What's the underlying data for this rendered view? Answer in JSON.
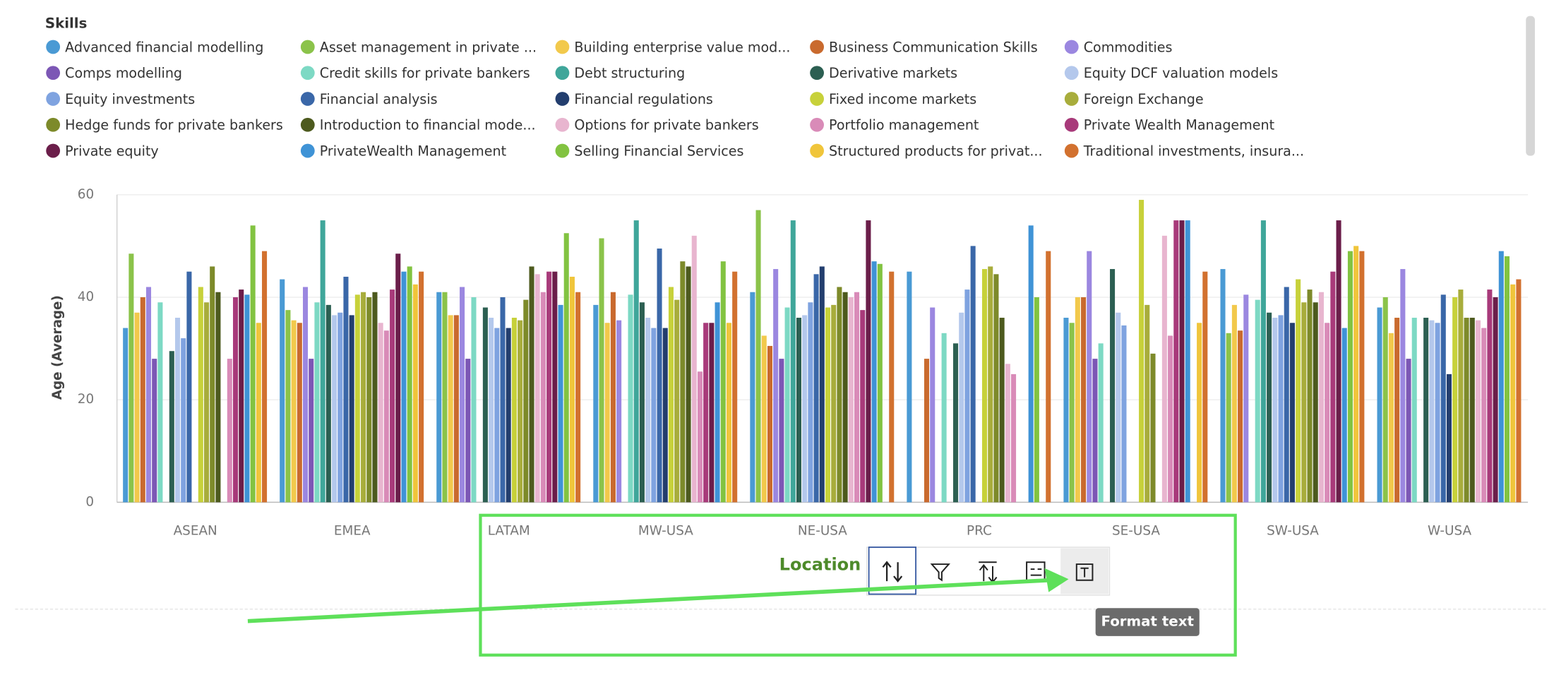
{
  "chart_data": {
    "type": "bar",
    "legend_title": "Skills",
    "y_label": "Age (Average)",
    "x_label": "Location",
    "grid": true,
    "ylim": [
      0,
      60
    ],
    "yticks": [
      0,
      20,
      40,
      60
    ],
    "categories": [
      "ASEAN",
      "EMEA",
      "LATAM",
      "MW-USA",
      "NE-USA",
      "PRC",
      "SE-USA",
      "SW-USA",
      "W-USA"
    ],
    "series": [
      {
        "name": "Advanced financial modelling",
        "color": "#4a9ad4",
        "values": [
          34,
          43.5,
          41,
          38.5,
          41,
          45,
          36,
          45.5,
          38
        ]
      },
      {
        "name": "Asset management in private ...",
        "color": "#8bc34a",
        "values": [
          48.5,
          37.5,
          41,
          51.5,
          57,
          null,
          35,
          33,
          40
        ]
      },
      {
        "name": "Building enterprise value mod...",
        "color": "#f2c94c",
        "values": [
          37,
          35.5,
          36.5,
          35,
          32.5,
          null,
          40,
          38.5,
          33
        ]
      },
      {
        "name": "Business Communication Skills",
        "color": "#c96a2e",
        "values": [
          40,
          35,
          36.5,
          41,
          30.5,
          28,
          40,
          33.5,
          36
        ]
      },
      {
        "name": "Commodities",
        "color": "#9b87e0",
        "values": [
          42,
          42,
          42,
          35.5,
          45.5,
          38,
          49,
          40.5,
          45.5
        ]
      },
      {
        "name": "Comps modelling",
        "color": "#7c57b5",
        "values": [
          28,
          28,
          28,
          null,
          28,
          null,
          28,
          null,
          28
        ]
      },
      {
        "name": "Credit skills for private bankers",
        "color": "#7dd9c4",
        "values": [
          39,
          39,
          40,
          40.5,
          38,
          33,
          31,
          39.5,
          36
        ]
      },
      {
        "name": "Debt structuring",
        "color": "#3fa69a",
        "values": [
          null,
          55,
          null,
          55,
          55,
          null,
          null,
          55,
          null
        ]
      },
      {
        "name": "Derivative markets",
        "color": "#2c5f52",
        "values": [
          29.5,
          38.5,
          38,
          39,
          36,
          31,
          45.5,
          37,
          36
        ]
      },
      {
        "name": "Equity DCF valuation models",
        "color": "#b4c8ec",
        "values": [
          36,
          36.5,
          36,
          36,
          36.5,
          37,
          37,
          36,
          35.5
        ]
      },
      {
        "name": "Equity investments",
        "color": "#7fa3e0",
        "values": [
          32,
          37,
          34,
          34,
          39,
          41.5,
          34.5,
          36.5,
          35
        ]
      },
      {
        "name": "Financial analysis",
        "color": "#3a67a8",
        "values": [
          45,
          44,
          40,
          49.5,
          44.5,
          50,
          null,
          42,
          40.5
        ]
      },
      {
        "name": "Financial regulations",
        "color": "#233e6e",
        "values": [
          null,
          36.5,
          34,
          34,
          46,
          null,
          null,
          35,
          25
        ]
      },
      {
        "name": "Fixed income markets",
        "color": "#c7d13a",
        "values": [
          42,
          40.5,
          36,
          42,
          38,
          45.5,
          59,
          43.5,
          40
        ]
      },
      {
        "name": "Foreign Exchange",
        "color": "#a8ad3c",
        "values": [
          39,
          41,
          35.5,
          39.5,
          38.5,
          46,
          38.5,
          39,
          41.5
        ]
      },
      {
        "name": "Hedge funds for private bankers",
        "color": "#7d8a2a",
        "values": [
          46,
          40,
          39.5,
          47,
          42,
          44.5,
          29,
          41.5,
          36
        ]
      },
      {
        "name": "Introduction to financial mode...",
        "color": "#4d5a1e",
        "values": [
          41,
          41,
          46,
          46,
          41,
          36,
          null,
          39,
          36
        ]
      },
      {
        "name": "Options for private bankers",
        "color": "#e8b5cf",
        "values": [
          null,
          35,
          44.5,
          52,
          40,
          27,
          52,
          41,
          35.5
        ]
      },
      {
        "name": "Portfolio management",
        "color": "#d98bb8",
        "values": [
          28,
          33.5,
          41,
          25.5,
          41,
          25,
          32.5,
          35,
          34
        ]
      },
      {
        "name": "Private Wealth Management",
        "color": "#a83a7a",
        "values": [
          40,
          41.5,
          45,
          35,
          37.5,
          null,
          55,
          45,
          41.5
        ]
      },
      {
        "name": "Private equity",
        "color": "#6b1e4a",
        "values": [
          41.5,
          48.5,
          45,
          35,
          55,
          null,
          55,
          55,
          40
        ]
      },
      {
        "name": "PrivateWealth Management",
        "color": "#3f93d6",
        "values": [
          40.5,
          45,
          38.5,
          39,
          47,
          54,
          55,
          34,
          49
        ]
      },
      {
        "name": "Selling Financial Services",
        "color": "#82c341",
        "values": [
          54,
          46,
          52.5,
          47,
          46.5,
          40,
          null,
          49,
          48
        ]
      },
      {
        "name": "Structured products for privat...",
        "color": "#f0c53b",
        "values": [
          35,
          42.5,
          44,
          35,
          null,
          null,
          35,
          50,
          42.5
        ]
      },
      {
        "name": "Traditional investments, insura...",
        "color": "#d2712f",
        "values": [
          49,
          45,
          41,
          45,
          45,
          49,
          45,
          49,
          43.5
        ]
      }
    ]
  },
  "tooltip": "Format text"
}
